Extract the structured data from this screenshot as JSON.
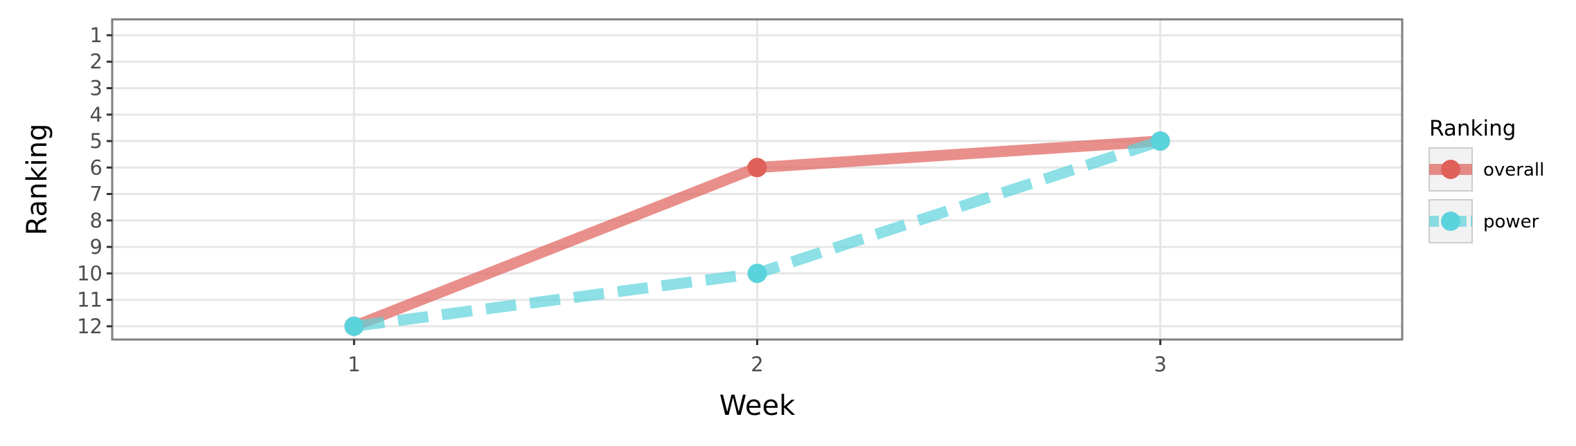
{
  "chart_data": {
    "type": "line",
    "title": "",
    "xlabel": "Week",
    "ylabel": "Ranking",
    "x": [
      1,
      2,
      3
    ],
    "x_ticks": [
      "1",
      "2",
      "3"
    ],
    "xlim": [
      0.4,
      3.6
    ],
    "y_ticks": [
      "1",
      "2",
      "3",
      "4",
      "5",
      "6",
      "7",
      "8",
      "9",
      "10",
      "11",
      "12"
    ],
    "ylim": [
      12.5,
      0.4
    ],
    "y_reversed": true,
    "grid": true,
    "legend": {
      "title": "Ranking",
      "placement": "right"
    },
    "series": [
      {
        "name": "overall",
        "values": [
          12,
          6,
          5
        ],
        "color": "#e0605a",
        "line_style": "solid"
      },
      {
        "name": "power",
        "values": [
          12,
          10,
          5
        ],
        "color": "#5bd3dc",
        "line_style": "dashed"
      }
    ]
  }
}
